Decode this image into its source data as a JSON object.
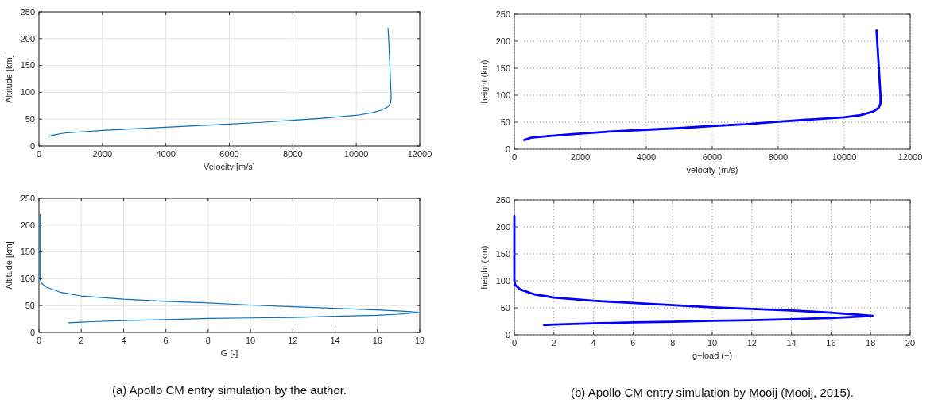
{
  "chart_data": [
    {
      "type": "line",
      "xlabel": "Velocity [m/s]",
      "ylabel": "Altitude [km]",
      "xlim": [
        0,
        12000
      ],
      "xticks": [
        0,
        2000,
        4000,
        6000,
        8000,
        10000,
        12000
      ],
      "ylim": [
        0,
        250
      ],
      "yticks": [
        0,
        50,
        100,
        150,
        200,
        250
      ],
      "grid": true,
      "series": [
        {
          "color": "#0072bd",
          "x": [
            300,
            500,
            800,
            1000,
            1500,
            2000,
            3000,
            4000,
            5000,
            6000,
            7000,
            8000,
            9000,
            10000,
            10500,
            10800,
            11000,
            11080,
            11100,
            11080,
            11050,
            11020,
            11000
          ],
          "values": [
            18,
            21,
            24,
            25,
            27,
            29,
            32,
            35,
            38,
            41,
            44,
            48,
            52,
            57,
            62,
            67,
            73,
            80,
            90,
            120,
            160,
            200,
            220
          ]
        }
      ]
    },
    {
      "type": "line",
      "xlabel": "velocity (m/s)",
      "ylabel": "height (km)",
      "xlim": [
        0,
        12000
      ],
      "xticks": [
        0,
        2000,
        4000,
        6000,
        8000,
        10000,
        12000
      ],
      "ylim": [
        0,
        250
      ],
      "yticks": [
        0,
        50,
        100,
        150,
        200,
        250
      ],
      "grid": true,
      "series": [
        {
          "color": "#0000ff",
          "x": [
            300,
            500,
            1000,
            2000,
            3000,
            4000,
            5000,
            6000,
            7000,
            8000,
            9000,
            10000,
            10500,
            10900,
            11050,
            11100,
            11100,
            11050,
            11000,
            10980
          ],
          "values": [
            17,
            21,
            24,
            29,
            33,
            36,
            39,
            43,
            46,
            51,
            55,
            59,
            63,
            70,
            77,
            85,
            100,
            150,
            200,
            220
          ]
        }
      ]
    },
    {
      "type": "line",
      "xlabel": "G [-]",
      "ylabel": "Altitude [km]",
      "xlim": [
        0,
        18
      ],
      "xticks": [
        0,
        2,
        4,
        6,
        8,
        10,
        12,
        14,
        16,
        18
      ],
      "ylim": [
        0,
        250
      ],
      "yticks": [
        0,
        50,
        100,
        150,
        200,
        250
      ],
      "grid": true,
      "annotations": [
        "(a) Apollo CM entry simulation by the author."
      ],
      "series": [
        {
          "color": "#0072bd",
          "x": [
            0.05,
            0.05,
            0.05,
            0.1,
            0.3,
            1,
            2,
            4,
            6,
            8,
            10,
            12,
            14,
            16,
            17.5,
            18,
            17,
            16,
            14,
            12,
            10,
            8,
            6,
            4,
            2.5,
            2,
            1.4
          ],
          "values": [
            220,
            150,
            100,
            93,
            85,
            75,
            68,
            62,
            58,
            55,
            51,
            48,
            45,
            42,
            39,
            37,
            34,
            32,
            30,
            28,
            27,
            26,
            24,
            22,
            20,
            19,
            18
          ]
        }
      ]
    },
    {
      "type": "line",
      "xlabel": "g−load (−)",
      "ylabel": "height (km)",
      "xlim": [
        0,
        20
      ],
      "xticks": [
        0,
        2,
        4,
        6,
        8,
        10,
        12,
        14,
        16,
        18,
        20
      ],
      "ylim": [
        0,
        250
      ],
      "yticks": [
        0,
        50,
        100,
        150,
        200,
        250
      ],
      "grid": true,
      "annotations": [
        "(b) Apollo CM entry simulation by Mooij (Mooij, 2015)."
      ],
      "series": [
        {
          "color": "#0000ff",
          "x": [
            0,
            0,
            0,
            0.05,
            0.3,
            1,
            2,
            4,
            6,
            8,
            10,
            12,
            14,
            16,
            17.5,
            18.1,
            17,
            16,
            14,
            12,
            10,
            8,
            6,
            4,
            2,
            1.5
          ],
          "values": [
            220,
            150,
            100,
            92,
            84,
            75,
            69,
            63,
            59,
            55,
            51,
            48,
            45,
            41,
            37,
            35,
            33,
            31,
            29,
            27,
            26,
            24,
            23,
            21,
            19,
            18
          ]
        }
      ]
    }
  ]
}
